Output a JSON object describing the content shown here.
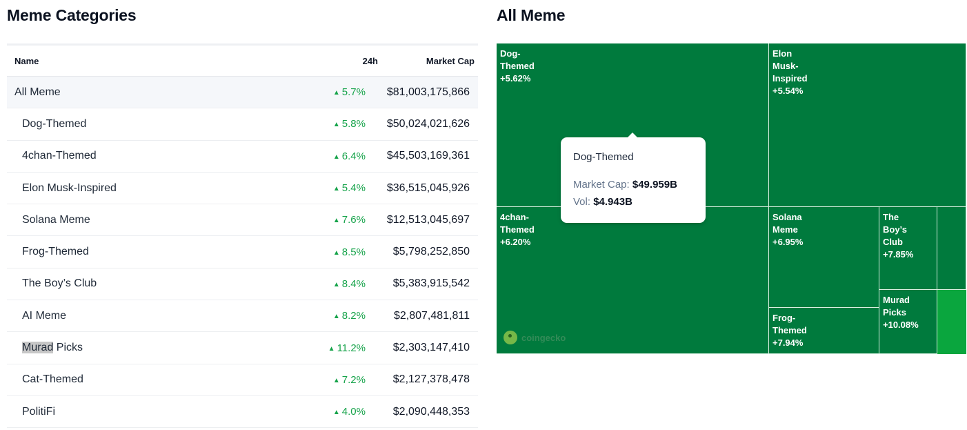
{
  "left_title": "Meme Categories",
  "right_title": "All Meme",
  "table": {
    "headers": {
      "name": "Name",
      "change": "24h",
      "cap": "Market Cap"
    },
    "rows": [
      {
        "name": "All Meme",
        "change": "5.7%",
        "cap": "$81,003,175,866"
      },
      {
        "name": "Dog-Themed",
        "change": "5.8%",
        "cap": "$50,024,021,626"
      },
      {
        "name": "4chan-Themed",
        "change": "6.4%",
        "cap": "$45,503,169,361"
      },
      {
        "name": "Elon Musk-Inspired",
        "change": "5.4%",
        "cap": "$36,515,045,926"
      },
      {
        "name": "Solana Meme",
        "change": "7.6%",
        "cap": "$12,513,045,697"
      },
      {
        "name": "Frog-Themed",
        "change": "8.5%",
        "cap": "$5,798,252,850"
      },
      {
        "name": "The Boy’s Club",
        "change": "8.4%",
        "cap": "$5,383,915,542"
      },
      {
        "name": "AI Meme",
        "change": "8.2%",
        "cap": "$2,807,481,811"
      },
      {
        "name_selected": "Murad",
        "name_rest": " Picks",
        "change": "11.2%",
        "cap": "$2,303,147,410"
      },
      {
        "name": "Cat-Themed",
        "change": "7.2%",
        "cap": "$2,127,378,478"
      },
      {
        "name": "PolitiFi",
        "change": "4.0%",
        "cap": "$2,090,448,353"
      }
    ]
  },
  "treemap": {
    "tiles": [
      {
        "label": "Dog-\nThemed",
        "change": "+5.62%"
      },
      {
        "label": "Elon\nMusk-\nInspired",
        "change": "+5.54%"
      },
      {
        "label": "4chan-\nThemed",
        "change": "+6.20%"
      },
      {
        "label": "Solana\nMeme",
        "change": "+6.95%"
      },
      {
        "label": "The\nBoy’s\nClub",
        "change": "+7.85%"
      },
      {
        "label": "Frog-\nThemed",
        "change": "+7.94%"
      },
      {
        "label": "Murad\nPicks",
        "change": "+10.08%"
      }
    ],
    "watermark": "coingecko"
  },
  "tooltip": {
    "title": "Dog-Themed",
    "cap_label": "Market Cap:",
    "cap_value": "$49.959B",
    "vol_label": "Vol:",
    "vol_value": "$4.943B"
  },
  "colors": {
    "positive": "#16a34a",
    "tile": "#007a3d",
    "tile_bright": "#0aa63e"
  }
}
